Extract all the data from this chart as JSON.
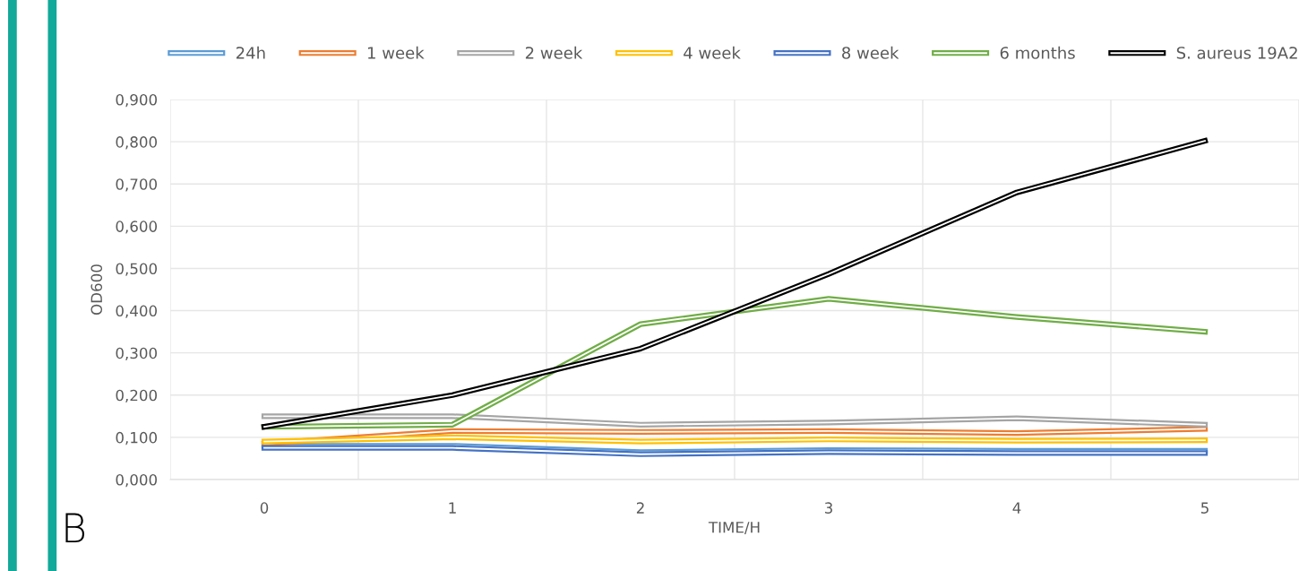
{
  "chart_data": {
    "type": "line",
    "xlabel": "TIME/H",
    "ylabel": "OD600",
    "categories": [
      "0",
      "1",
      "2",
      "3",
      "4",
      "5"
    ],
    "series": [
      {
        "name": "24h",
        "color": "#5b9bd5",
        "values": [
          0.08,
          0.08,
          0.065,
          0.07,
          0.068,
          0.068
        ]
      },
      {
        "name": "1 week",
        "color": "#ed7d31",
        "values": [
          0.085,
          0.115,
          0.113,
          0.115,
          0.11,
          0.12
        ]
      },
      {
        "name": "2 week",
        "color": "#a5a5a5",
        "values": [
          0.15,
          0.15,
          0.13,
          0.135,
          0.145,
          0.13
        ]
      },
      {
        "name": "4 week",
        "color": "#ffc000",
        "values": [
          0.09,
          0.1,
          0.09,
          0.095,
          0.092,
          0.093
        ]
      },
      {
        "name": "8 week",
        "color": "#4472c4",
        "values": [
          0.075,
          0.075,
          0.06,
          0.065,
          0.063,
          0.063
        ]
      },
      {
        "name": "6 months",
        "color": "#70ad47",
        "values": [
          0.125,
          0.13,
          0.368,
          0.428,
          0.385,
          0.35
        ]
      },
      {
        "name": "S. aureus 19A2",
        "color": "#000000",
        "values": [
          0.125,
          0.2,
          0.31,
          0.487,
          0.68,
          0.802
        ]
      }
    ],
    "ylim": [
      0,
      0.9
    ],
    "yticks": [
      {
        "value": 0,
        "label": "0,000"
      },
      {
        "value": 0.1,
        "label": "0,100"
      },
      {
        "value": 0.2,
        "label": "0,200"
      },
      {
        "value": 0.3,
        "label": "0,300"
      },
      {
        "value": 0.4,
        "label": "0,400"
      },
      {
        "value": 0.5,
        "label": "0,500"
      },
      {
        "value": 0.6,
        "label": "0,600"
      },
      {
        "value": 0.7,
        "label": "0,700"
      },
      {
        "value": 0.8,
        "label": "0,800"
      },
      {
        "value": 0.9,
        "label": "0,900"
      }
    ],
    "grid": true,
    "legend": "top",
    "line_style": "solid",
    "marker": "none",
    "annotations": [
      "B"
    ]
  }
}
